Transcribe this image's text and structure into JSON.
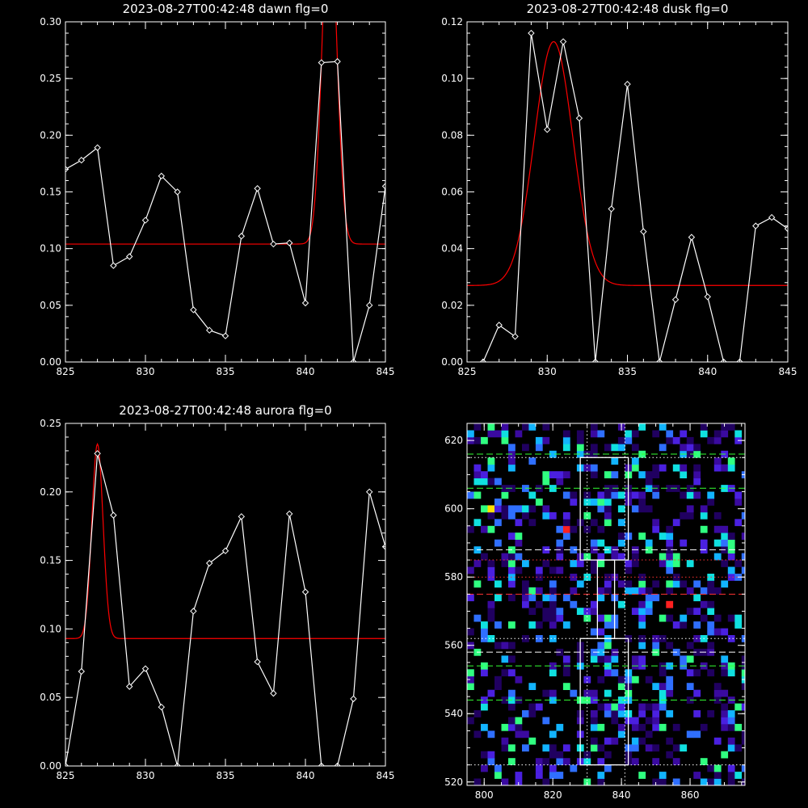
{
  "chart_data": [
    {
      "type": "line",
      "title": "2023-08-27T00:42:48 dawn flg=0",
      "xlim": [
        825,
        845
      ],
      "ylim": [
        0,
        0.3
      ],
      "xticks": [
        "825",
        "830",
        "835",
        "840",
        "845"
      ],
      "yticks": [
        "0.00",
        "0.05",
        "0.10",
        "0.15",
        "0.20",
        "0.25",
        "0.30"
      ],
      "series": [
        {
          "style": "white-line-diamond-markers",
          "x": [
            825,
            826,
            827,
            828,
            829,
            830,
            831,
            832,
            833,
            834,
            835,
            836,
            837,
            838,
            839,
            840,
            841,
            842,
            843,
            844,
            845
          ],
          "y": [
            0.17,
            0.178,
            0.189,
            0.085,
            0.093,
            0.125,
            0.164,
            0.15,
            0.046,
            0.028,
            0.023,
            0.111,
            0.153,
            0.104,
            0.105,
            0.052,
            0.264,
            0.265,
            0.0,
            0.05,
            0.155
          ]
        }
      ],
      "fit": {
        "style": "red-gaussian",
        "baseline": 0.104,
        "amplitude": 0.3,
        "center": 841.5,
        "sigma": 0.45
      },
      "colors": {
        "data": "#ffffff",
        "fit": "#ff0000"
      }
    },
    {
      "type": "line",
      "title": "2023-08-27T00:42:48 dusk flg=0",
      "xlim": [
        825,
        845
      ],
      "ylim": [
        0,
        0.12
      ],
      "xticks": [
        "825",
        "830",
        "835",
        "840",
        "845"
      ],
      "yticks": [
        "0.00",
        "0.02",
        "0.04",
        "0.06",
        "0.08",
        "0.10",
        "0.12"
      ],
      "series": [
        {
          "style": "white-line-diamond-markers",
          "x": [
            825,
            826,
            827,
            828,
            829,
            830,
            831,
            832,
            833,
            834,
            835,
            836,
            837,
            838,
            839,
            840,
            841,
            842,
            843,
            844,
            845
          ],
          "y": [
            -0.005,
            0.0,
            0.013,
            0.009,
            0.116,
            0.082,
            0.113,
            0.086,
            0.0,
            0.054,
            0.098,
            0.046,
            0.0,
            0.022,
            0.044,
            0.023,
            0.0,
            0.0,
            0.048,
            0.051,
            0.047
          ]
        }
      ],
      "fit": {
        "style": "red-gaussian",
        "baseline": 0.027,
        "amplitude": 0.086,
        "center": 830.4,
        "sigma": 1.2
      },
      "colors": {
        "data": "#ffffff",
        "fit": "#ff0000"
      }
    },
    {
      "type": "line",
      "title": "2023-08-27T00:42:48 aurora flg=0",
      "xlim": [
        825,
        845
      ],
      "ylim": [
        0,
        0.25
      ],
      "xticks": [
        "825",
        "830",
        "835",
        "840",
        "845"
      ],
      "yticks": [
        "0.00",
        "0.05",
        "0.10",
        "0.15",
        "0.20",
        "0.25"
      ],
      "series": [
        {
          "style": "white-line-diamond-markers",
          "x": [
            825,
            826,
            827,
            828,
            829,
            830,
            831,
            832,
            833,
            834,
            835,
            836,
            837,
            838,
            839,
            840,
            841,
            842,
            843,
            844,
            845
          ],
          "y": [
            0.0,
            0.069,
            0.228,
            0.183,
            0.058,
            0.071,
            0.043,
            0.0,
            0.113,
            0.148,
            0.157,
            0.182,
            0.076,
            0.053,
            0.184,
            0.127,
            0.0,
            0.0,
            0.049,
            0.2,
            0.16
          ]
        }
      ],
      "fit": {
        "style": "red-gaussian",
        "baseline": 0.093,
        "amplitude": 0.142,
        "center": 827.0,
        "sigma": 0.35
      },
      "colors": {
        "data": "#ffffff",
        "fit": "#ff0000"
      }
    },
    {
      "type": "heatmap",
      "title": "",
      "xlim": [
        795,
        876
      ],
      "ylim": [
        519,
        625
      ],
      "xticks": [
        "800",
        "820",
        "840",
        "860"
      ],
      "yticks": [
        "520",
        "540",
        "560",
        "580",
        "600",
        "620"
      ],
      "cell_size": 2,
      "density": 0.3,
      "palette": [
        "#200060",
        "#3a0aa0",
        "#4a20e0",
        "#2f6fff",
        "#12b4ff",
        "#10e0e0",
        "#30ff80",
        "#ffe000",
        "#ff2020"
      ],
      "boxes": [
        {
          "x0": 828,
          "x1": 842,
          "y0": 585,
          "y1": 615
        },
        {
          "x0": 833,
          "x1": 838,
          "y0": 562,
          "y1": 585
        },
        {
          "x0": 828,
          "x1": 842,
          "y0": 525,
          "y1": 562
        }
      ],
      "vertical_dotted": [
        830,
        841
      ],
      "horizontal_lines": [
        {
          "y": 616,
          "color": "#33ff33",
          "style": "dashed"
        },
        {
          "y": 615,
          "color": "#ffffff",
          "style": "dotted"
        },
        {
          "y": 606,
          "color": "#33ff33",
          "style": "dashed"
        },
        {
          "y": 588,
          "color": "#ffffff",
          "style": "dashed"
        },
        {
          "y": 585,
          "color": "#ff3333",
          "style": "dotted"
        },
        {
          "y": 580,
          "color": "#ff3333",
          "style": "dotted"
        },
        {
          "y": 575,
          "color": "#ff3333",
          "style": "dashed"
        },
        {
          "y": 562,
          "color": "#ffffff",
          "style": "dotted"
        },
        {
          "y": 558,
          "color": "#ffffff",
          "style": "dashed"
        },
        {
          "y": 554,
          "color": "#33ff33",
          "style": "dashed"
        },
        {
          "y": 544,
          "color": "#33ff33",
          "style": "dashed"
        },
        {
          "y": 525,
          "color": "#ffffff",
          "style": "dotted"
        }
      ]
    }
  ]
}
